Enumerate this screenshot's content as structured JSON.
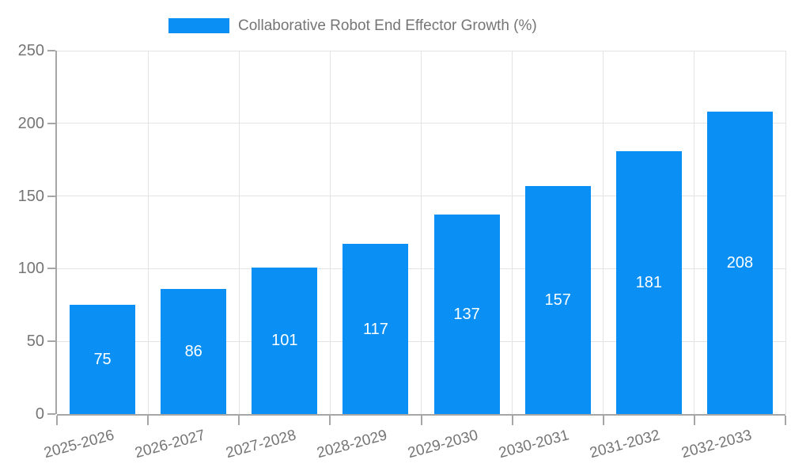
{
  "page": {
    "background": "#ffffff"
  },
  "legend": {
    "label": "Collaborative Robot End Effector Growth (%)",
    "swatch_color": "#0a90f5"
  },
  "chart_data": {
    "type": "bar",
    "title": "Collaborative Robot End Effector Growth (%)",
    "categories": [
      "2025-2026",
      "2026-2027",
      "2027-2028",
      "2028-2029",
      "2029-2030",
      "2030-2031",
      "2031-2032",
      "2032-2033"
    ],
    "values": [
      75,
      86,
      101,
      117,
      137,
      157,
      181,
      208
    ],
    "xlabel": "",
    "ylabel": "",
    "ylim": [
      0,
      250
    ],
    "y_ticks": [
      0,
      50,
      100,
      150,
      200,
      250
    ],
    "grid": true,
    "legend_position": "top-center",
    "x_label_rotation_deg": -15,
    "colors": {
      "bar": "#0a90f5",
      "value_label": "#ffffff",
      "axis": "#a6a6a6",
      "grid": "#e3e3e3",
      "text": "#757575"
    }
  }
}
